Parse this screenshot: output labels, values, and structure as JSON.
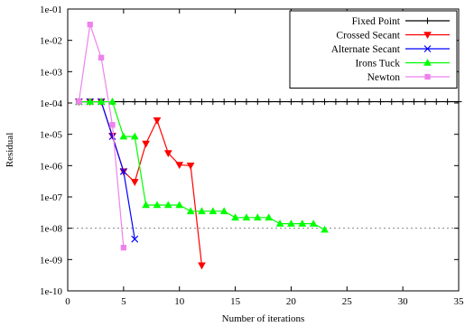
{
  "chart_data": {
    "type": "line",
    "xlabel": "Number of iterations",
    "ylabel": "Residual",
    "xlim": [
      0,
      35
    ],
    "ylim": [
      1e-10,
      0.1
    ],
    "y_scale": "log",
    "x_ticks": [
      "0",
      "5",
      "10",
      "15",
      "20",
      "25",
      "30",
      "35"
    ],
    "x_tick_values": [
      0,
      5,
      10,
      15,
      20,
      25,
      30,
      35
    ],
    "y_ticks": [
      "1e-10",
      "1e-09",
      "1e-08",
      "1e-07",
      "1e-06",
      "1e-05",
      "1e-04",
      "1e-03",
      "1e-02",
      "1e-01"
    ],
    "y_tick_values": [
      1e-10,
      1e-09,
      1e-08,
      1e-07,
      1e-06,
      1e-05,
      0.0001,
      0.001,
      0.01,
      0.1
    ],
    "grid": false,
    "legend_position": "top-right",
    "reference_line": {
      "y": 1e-08,
      "style": "dashed",
      "color": "#888888"
    },
    "series": [
      {
        "name": "Fixed Point",
        "color": "#000000",
        "marker": "plus",
        "x": [
          1,
          2,
          3,
          4,
          5,
          6,
          7,
          8,
          9,
          10,
          11,
          12,
          13,
          14,
          15,
          16,
          17,
          18,
          19,
          20,
          21,
          22,
          23,
          24,
          25,
          26,
          27,
          28,
          29,
          30,
          31,
          32,
          33,
          34,
          35
        ],
        "y": [
          0.00011,
          0.00011,
          0.00011,
          0.00011,
          0.00011,
          0.00011,
          0.00011,
          0.00011,
          0.00011,
          0.00011,
          0.00011,
          0.00011,
          0.00011,
          0.00011,
          0.00011,
          0.00011,
          0.00011,
          0.00011,
          0.00011,
          0.00011,
          0.00011,
          0.00011,
          0.00011,
          0.00011,
          0.00011,
          0.00011,
          0.00011,
          0.00011,
          0.00011,
          0.00011,
          0.00011,
          0.00011,
          0.00011,
          0.00011,
          0.00011
        ]
      },
      {
        "name": "Crossed Secant",
        "color": "#ff0000",
        "marker": "triangle-down",
        "x": [
          1,
          2,
          3,
          4,
          5,
          6,
          7,
          8,
          9,
          10,
          11,
          12
        ],
        "y": [
          0.00011,
          0.00011,
          0.00011,
          9e-06,
          6.5e-07,
          3e-07,
          5e-06,
          2.8e-05,
          2.5e-06,
          1.05e-06,
          1e-06,
          6.5e-10
        ]
      },
      {
        "name": "Alternate Secant",
        "color": "#0000ff",
        "marker": "x",
        "x": [
          1,
          2,
          3,
          4,
          5,
          6
        ],
        "y": [
          0.00011,
          0.00011,
          0.00011,
          8.5e-06,
          6.5e-07,
          4.5e-09
        ]
      },
      {
        "name": "Irons Tuck",
        "color": "#00ff00",
        "marker": "triangle-up",
        "x": [
          1,
          2,
          3,
          4,
          5,
          6,
          7,
          8,
          9,
          10,
          11,
          12,
          13,
          14,
          15,
          16,
          17,
          18,
          19,
          20,
          21,
          22,
          23
        ],
        "y": [
          0.00011,
          0.00011,
          0.00011,
          0.00011,
          8.5e-06,
          8.5e-06,
          5.5e-08,
          5.5e-08,
          5.5e-08,
          5.5e-08,
          3.5e-08,
          3.5e-08,
          3.5e-08,
          3.5e-08,
          2.2e-08,
          2.2e-08,
          2.2e-08,
          2.2e-08,
          1.4e-08,
          1.4e-08,
          1.4e-08,
          1.4e-08,
          9e-09
        ]
      },
      {
        "name": "Newton",
        "color": "#ee82ee",
        "marker": "square",
        "x": [
          1,
          2,
          3,
          4,
          5
        ],
        "y": [
          0.00011,
          0.032,
          0.0028,
          2e-05,
          2.4e-09
        ]
      }
    ]
  }
}
